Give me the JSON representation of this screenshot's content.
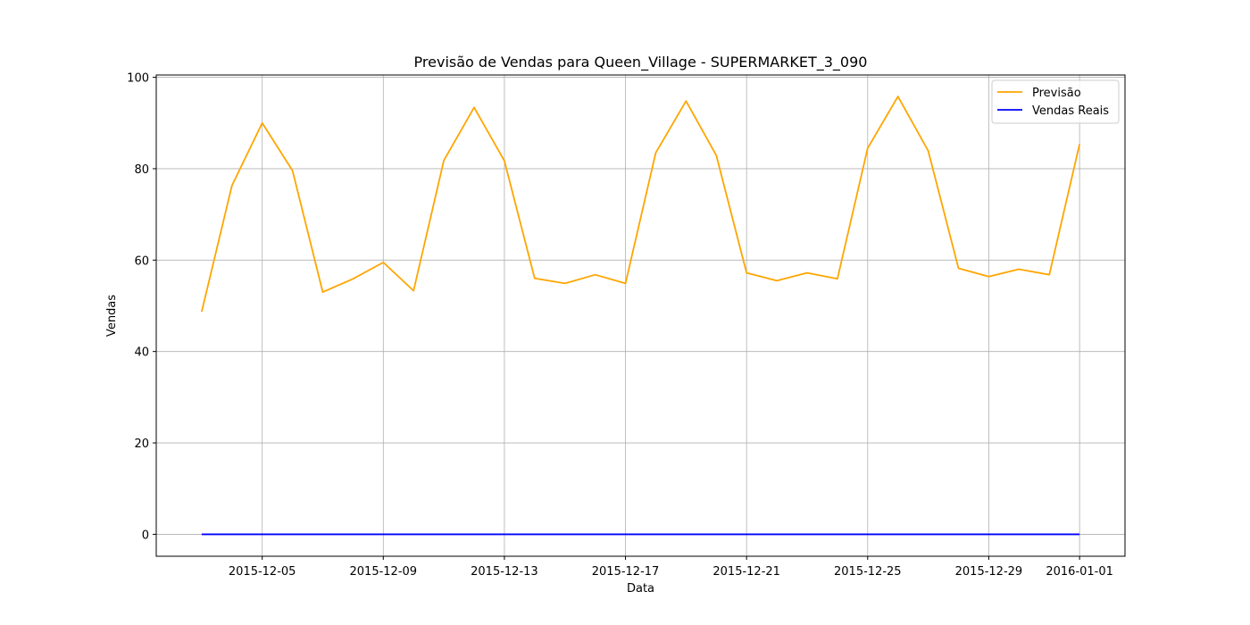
{
  "chart_data": {
    "type": "line",
    "title": "Previsão de Vendas para Queen_Village - SUPERMARKET_3_090",
    "xlabel": "Data",
    "ylabel": "Vendas",
    "ylim": [
      -4.8,
      100.5
    ],
    "xlim": [
      "2015-12-01T12:00",
      "2016-01-02T12:00"
    ],
    "grid": true,
    "legend_position": "top-right",
    "x_ticks": [
      "2015-12-05",
      "2015-12-09",
      "2015-12-13",
      "2015-12-17",
      "2015-12-21",
      "2015-12-25",
      "2015-12-29",
      "2016-01-01"
    ],
    "y_ticks": [
      0,
      20,
      40,
      60,
      80,
      100
    ],
    "x": [
      "2015-12-03",
      "2015-12-04",
      "2015-12-05",
      "2015-12-06",
      "2015-12-07",
      "2015-12-08",
      "2015-12-09",
      "2015-12-10",
      "2015-12-11",
      "2015-12-12",
      "2015-12-13",
      "2015-12-14",
      "2015-12-15",
      "2015-12-16",
      "2015-12-17",
      "2015-12-18",
      "2015-12-19",
      "2015-12-20",
      "2015-12-21",
      "2015-12-22",
      "2015-12-23",
      "2015-12-24",
      "2015-12-25",
      "2015-12-26",
      "2015-12-27",
      "2015-12-28",
      "2015-12-29",
      "2015-12-30",
      "2015-12-31",
      "2016-01-01"
    ],
    "series": [
      {
        "name": "Previsão",
        "color": "#ffa500",
        "values": [
          48.7,
          76.3,
          90.0,
          79.6,
          53.0,
          55.9,
          59.5,
          53.3,
          81.8,
          93.4,
          81.7,
          56.0,
          54.9,
          56.8,
          54.9,
          83.5,
          94.8,
          82.9,
          57.2,
          55.5,
          57.2,
          55.9,
          84.5,
          95.8,
          83.9,
          58.2,
          56.4,
          58.0,
          56.8,
          85.4
        ]
      },
      {
        "name": "Vendas Reais",
        "color": "#0000ff",
        "values": [
          0,
          0,
          0,
          0,
          0,
          0,
          0,
          0,
          0,
          0,
          0,
          0,
          0,
          0,
          0,
          0,
          0,
          0,
          0,
          0,
          0,
          0,
          0,
          0,
          0,
          0,
          0,
          0,
          0,
          0
        ]
      }
    ]
  }
}
